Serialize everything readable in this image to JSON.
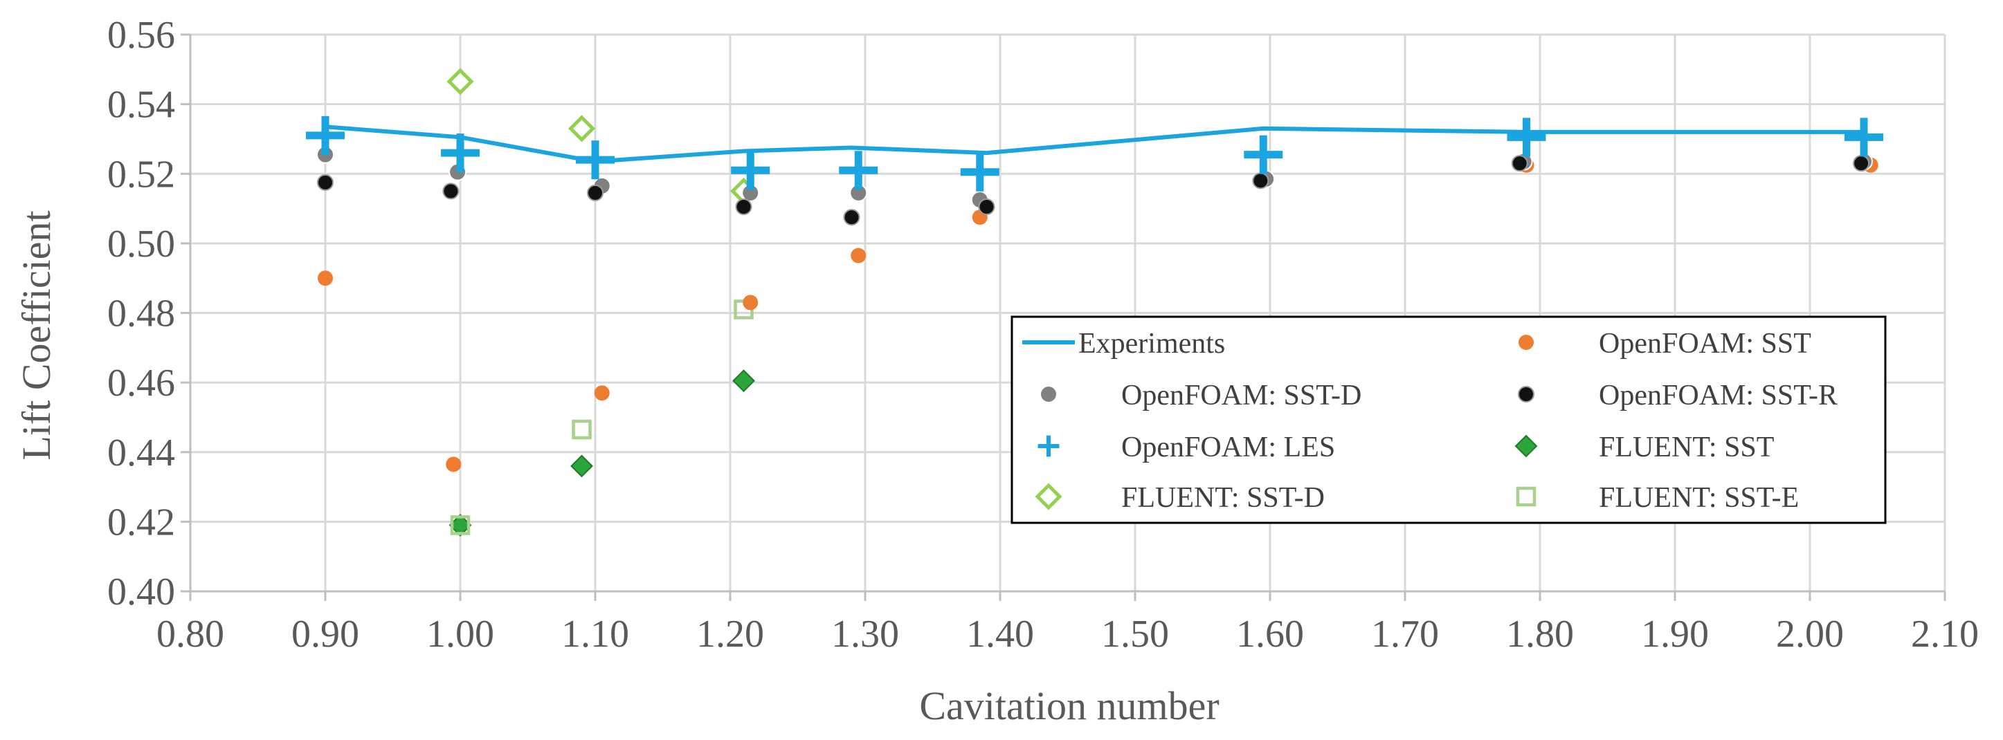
{
  "chart_data": {
    "type": "scatter",
    "title": "",
    "xlabel": "Cavitation number",
    "ylabel": "Lift Coefficient",
    "xlim": [
      0.8,
      2.1
    ],
    "ylim": [
      0.4,
      0.56
    ],
    "x_ticks": [
      "0.80",
      "0.90",
      "1.00",
      "1.10",
      "1.20",
      "1.30",
      "1.40",
      "1.50",
      "1.60",
      "1.70",
      "1.80",
      "1.90",
      "2.00",
      "2.10"
    ],
    "y_ticks": [
      "0.40",
      "0.42",
      "0.44",
      "0.46",
      "0.48",
      "0.50",
      "0.52",
      "0.54",
      "0.56"
    ],
    "grid": true,
    "legend_position": "center-right",
    "series": [
      {
        "name": "Experiments",
        "marker": "line",
        "color": "#1aa5e0",
        "points": [
          [
            0.9,
            0.5335
          ],
          [
            1.0,
            0.5305
          ],
          [
            1.1,
            0.5235
          ],
          [
            1.21,
            0.5265
          ],
          [
            1.29,
            0.5275
          ],
          [
            1.39,
            0.526
          ],
          [
            1.595,
            0.533
          ],
          [
            1.79,
            0.532
          ],
          [
            2.04,
            0.532
          ]
        ]
      },
      {
        "name": "OpenFOAM: SST",
        "marker": "orange-circle",
        "color": "#ed7d31",
        "points": [
          [
            0.9,
            0.49
          ],
          [
            0.995,
            0.4365
          ],
          [
            1.105,
            0.457
          ],
          [
            1.215,
            0.483
          ],
          [
            1.295,
            0.4965
          ],
          [
            1.385,
            0.5075
          ],
          [
            1.79,
            0.5225
          ],
          [
            2.045,
            0.5225
          ]
        ]
      },
      {
        "name": "OpenFOAM: SST-D",
        "marker": "gray-circle",
        "color": "#808080",
        "points": [
          [
            0.9,
            0.5255
          ],
          [
            0.998,
            0.5205
          ],
          [
            1.105,
            0.5165
          ],
          [
            1.215,
            0.5145
          ],
          [
            1.295,
            0.5145
          ],
          [
            1.385,
            0.5125
          ],
          [
            1.597,
            0.5185
          ],
          [
            1.788,
            0.5235
          ],
          [
            2.04,
            0.5235
          ]
        ]
      },
      {
        "name": "OpenFOAM: SST-R",
        "marker": "black-circle",
        "color": "#111111",
        "points": [
          [
            0.9,
            0.5175
          ],
          [
            0.993,
            0.515
          ],
          [
            1.1,
            0.5145
          ],
          [
            1.21,
            0.5105
          ],
          [
            1.29,
            0.5075
          ],
          [
            1.39,
            0.5105
          ],
          [
            1.593,
            0.518
          ],
          [
            1.785,
            0.523
          ],
          [
            2.038,
            0.523
          ]
        ]
      },
      {
        "name": "OpenFOAM: LES",
        "marker": "plus",
        "color": "#1aa5e0",
        "points": [
          [
            0.9,
            0.531
          ],
          [
            1.0,
            0.526
          ],
          [
            1.1,
            0.524
          ],
          [
            1.215,
            0.521
          ],
          [
            1.295,
            0.521
          ],
          [
            1.385,
            0.5205
          ],
          [
            1.595,
            0.5255
          ],
          [
            1.79,
            0.5305
          ],
          [
            2.04,
            0.5305
          ]
        ]
      },
      {
        "name": "FLUENT: SST",
        "marker": "green-diamond",
        "color": "#2aa63a",
        "points": [
          [
            1.0,
            0.419
          ],
          [
            1.09,
            0.436
          ],
          [
            1.21,
            0.4605
          ]
        ]
      },
      {
        "name": "FLUENT: SST-D",
        "marker": "hollow-diamond",
        "color": "#92d050",
        "points": [
          [
            1.0,
            0.5465
          ],
          [
            1.09,
            0.533
          ],
          [
            1.21,
            0.515
          ]
        ]
      },
      {
        "name": "FLUENT: SST-E",
        "marker": "hollow-square",
        "color": "#a9d18e",
        "points": [
          [
            1.0,
            0.419
          ],
          [
            1.09,
            0.4465
          ],
          [
            1.21,
            0.481
          ]
        ]
      }
    ]
  }
}
